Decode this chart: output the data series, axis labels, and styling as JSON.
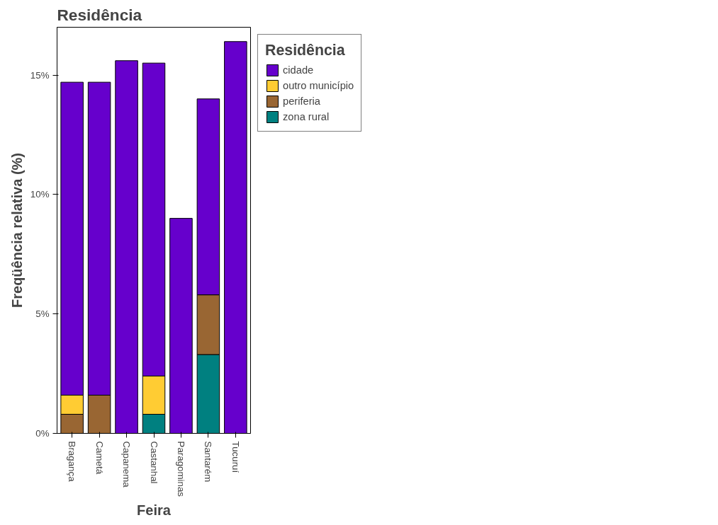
{
  "chart_data": {
    "type": "bar",
    "title": "Residência",
    "xlabel": "Feira",
    "ylabel": "Freqüência relativa (%)",
    "legend_title": "Residência",
    "categories": [
      "Bragança",
      "Cametá",
      "Capanema",
      "Castanhal",
      "Paragominas",
      "Santarém",
      "Tucuruí"
    ],
    "stacked": true,
    "series": [
      {
        "name": "zona rural",
        "color": "#008080",
        "values": [
          0,
          0,
          0,
          0.8,
          0,
          3.3,
          0
        ]
      },
      {
        "name": "periferia",
        "color": "#996633",
        "values": [
          0.8,
          1.6,
          0,
          0,
          0,
          2.5,
          0
        ]
      },
      {
        "name": "outro município",
        "color": "#ffcc33",
        "values": [
          0.8,
          0,
          0,
          1.6,
          0,
          0,
          0
        ]
      },
      {
        "name": "cidade",
        "color": "#6600cc",
        "values": [
          13.1,
          13.1,
          15.6,
          13.1,
          9.0,
          8.2,
          16.4
        ]
      }
    ],
    "ylim": [
      0,
      17
    ],
    "yticks": [
      {
        "value": 0,
        "label": "0%"
      },
      {
        "value": 5,
        "label": "5%"
      },
      {
        "value": 10,
        "label": "10%"
      },
      {
        "value": 15,
        "label": "15%"
      }
    ],
    "grid": false,
    "legend": "right"
  }
}
